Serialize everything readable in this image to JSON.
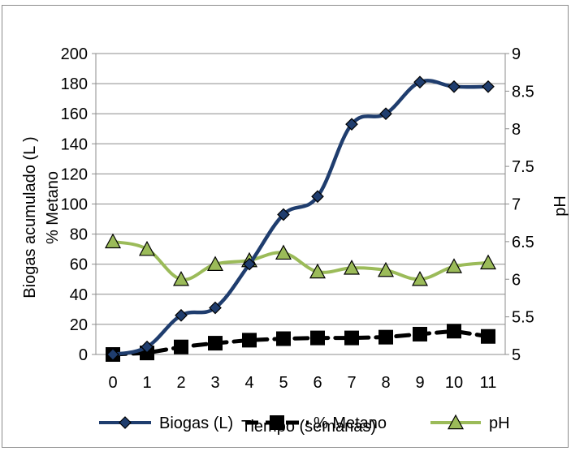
{
  "chart_data": {
    "type": "line",
    "x": [
      0,
      1,
      2,
      3,
      4,
      5,
      6,
      7,
      8,
      9,
      10,
      11
    ],
    "xlabel": "Tiempo (semanas)",
    "ylabel_left_1": "Biogas acumulado (L )",
    "ylabel_left_2": "% Metano",
    "ylabel_right": "pH",
    "ylim_left": [
      0,
      200
    ],
    "ylim_right": [
      5,
      9
    ],
    "yticks_left": [
      0,
      20,
      40,
      60,
      80,
      100,
      120,
      140,
      160,
      180,
      200
    ],
    "yticks_right": [
      5,
      5.5,
      6,
      6.5,
      7,
      7.5,
      8,
      8.5,
      9
    ],
    "grid": true,
    "legend_position": "bottom",
    "series": [
      {
        "name": "Biogas (L)",
        "axis": "left",
        "color": "#1F3D6E",
        "marker": "diamond",
        "values": [
          0,
          5,
          26,
          31,
          60,
          93,
          105,
          153,
          160,
          181,
          178,
          178
        ]
      },
      {
        "name": "% Metano",
        "axis": "left",
        "color": "#000000",
        "marker": "square",
        "values": [
          0,
          1,
          5,
          7.5,
          9.5,
          10.5,
          11,
          11,
          11.5,
          13.5,
          15.5,
          12
        ]
      },
      {
        "name": "pH",
        "axis": "right",
        "color": "#9BBB59",
        "marker": "triangle",
        "values": [
          6.5,
          6.4,
          6.0,
          6.2,
          6.25,
          6.35,
          6.1,
          6.15,
          6.12,
          6.0,
          6.17,
          6.22
        ]
      }
    ]
  }
}
